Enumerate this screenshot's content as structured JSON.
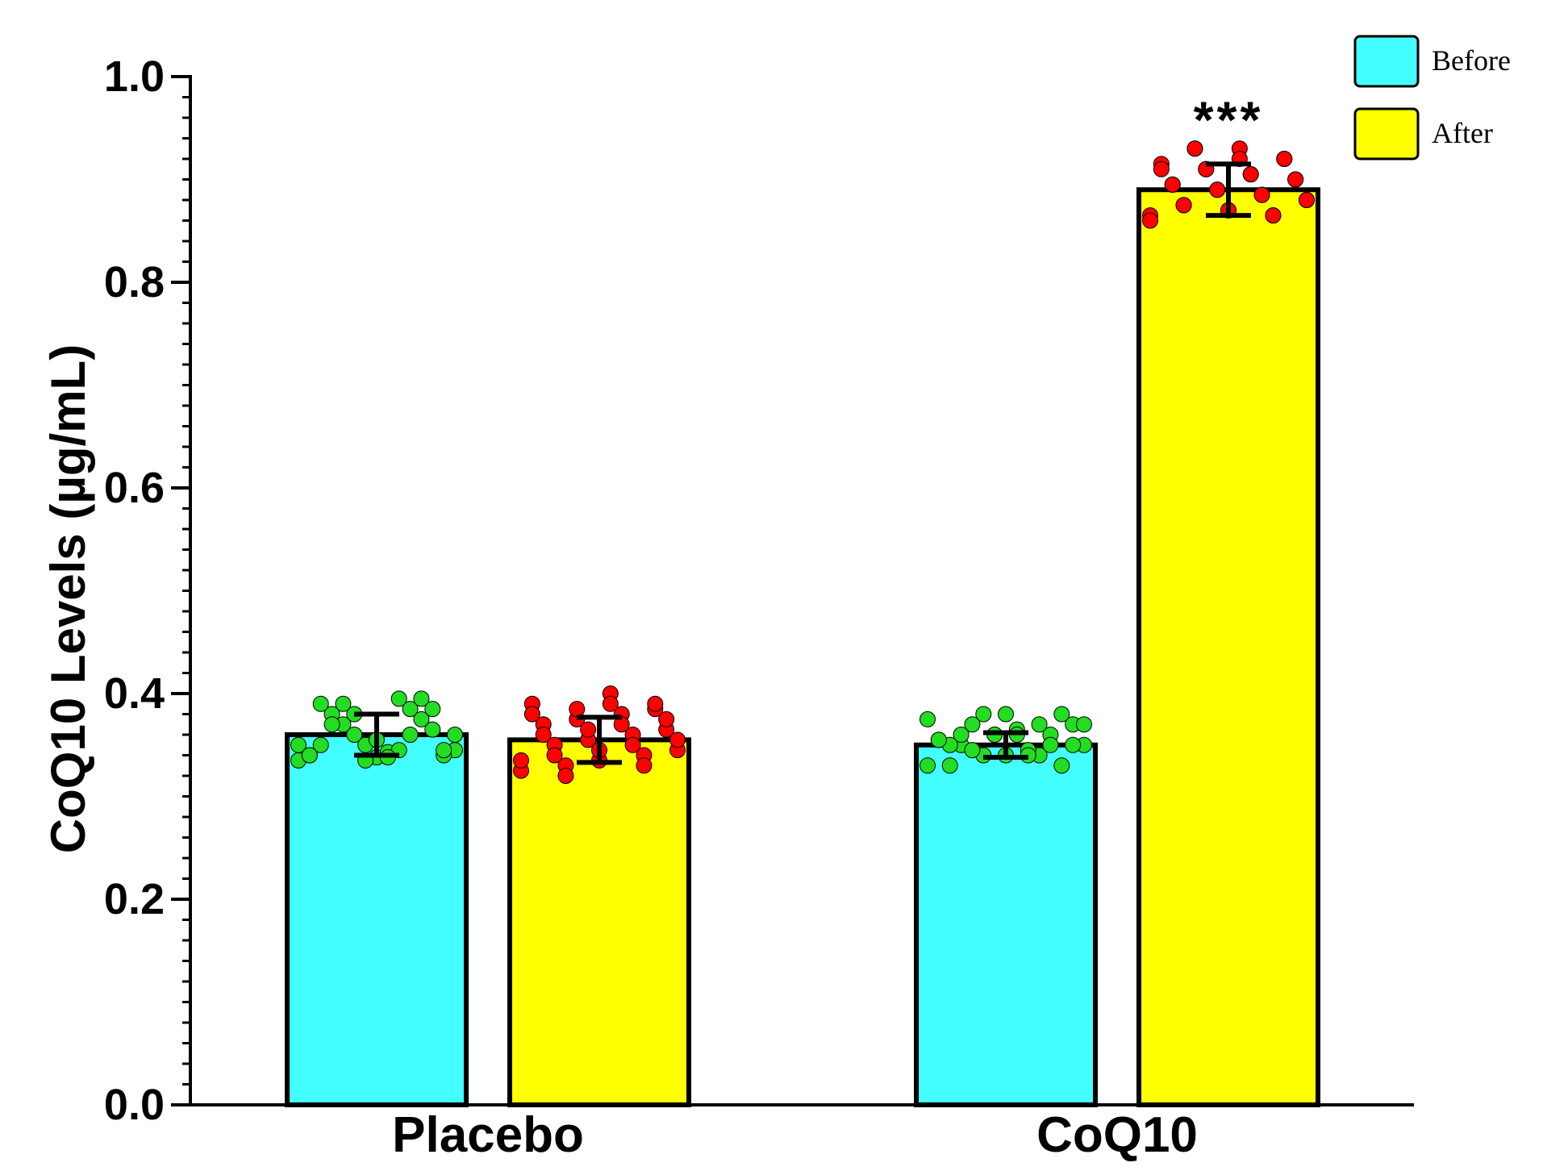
{
  "chart_data": {
    "type": "bar",
    "title": "",
    "xlabel": "",
    "ylabel": "CoQ10 Levels (µg/mL)",
    "ylim": [
      0,
      1.0
    ],
    "yticks": [
      "0.0",
      "0.2",
      "0.4",
      "0.6",
      "0.8",
      "1.0"
    ],
    "yticks_values": [
      0,
      0.2,
      0.4,
      0.6,
      0.8,
      1.0
    ],
    "minor_tick_step": 0.02,
    "grid": false,
    "legend_position": "top-right",
    "categories": [
      "Placebo",
      "CoQ10"
    ],
    "series": [
      {
        "name": "Before",
        "color": "#44FFFF",
        "point_color": "#22DD22",
        "values": [
          0.36,
          0.35
        ],
        "errors": [
          0.02,
          0.012
        ],
        "points": [
          [
            0.335,
            0.338,
            0.345,
            0.35,
            0.34,
            0.36,
            0.365,
            0.37,
            0.375,
            0.38,
            0.385,
            0.39,
            0.395,
            0.34,
            0.343,
            0.35,
            0.355,
            0.36,
            0.335,
            0.345,
            0.38,
            0.385,
            0.39,
            0.395,
            0.37,
            0.36,
            0.35,
            0.345,
            0.34,
            0.338
          ],
          [
            0.33,
            0.34,
            0.35,
            0.36,
            0.37,
            0.38,
            0.38,
            0.37,
            0.36,
            0.35,
            0.34,
            0.33,
            0.345,
            0.355,
            0.365,
            0.375,
            0.38,
            0.37,
            0.36,
            0.35,
            0.34,
            0.33,
            0.345,
            0.35,
            0.36,
            0.37,
            0.35,
            0.34,
            0.355,
            0.36
          ]
        ]
      },
      {
        "name": "After",
        "color": "#FFFF00",
        "point_color": "#FF0000",
        "values": [
          0.355,
          0.89
        ],
        "errors": [
          0.022,
          0.025
        ],
        "points": [
          [
            0.325,
            0.335,
            0.345,
            0.355,
            0.365,
            0.375,
            0.385,
            0.33,
            0.34,
            0.35,
            0.36,
            0.37,
            0.38,
            0.39,
            0.4,
            0.335,
            0.345,
            0.355,
            0.365,
            0.375,
            0.385,
            0.39,
            0.32,
            0.33,
            0.34,
            0.35,
            0.36,
            0.37,
            0.38,
            0.39
          ],
          [
            0.865,
            0.87,
            0.88,
            0.89,
            0.9,
            0.91,
            0.92,
            0.93,
            0.865,
            0.875,
            0.885,
            0.895,
            0.905,
            0.915,
            0.93,
            0.86,
            0.87,
            0.88,
            0.89,
            0.9,
            0.91,
            0.92,
            0.93,
            0.865,
            0.875,
            0.885,
            0.895,
            0.905,
            0.91,
            0.92
          ]
        ]
      }
    ],
    "annotations": [
      {
        "text": "***",
        "category": "CoQ10",
        "series": "After"
      }
    ]
  }
}
